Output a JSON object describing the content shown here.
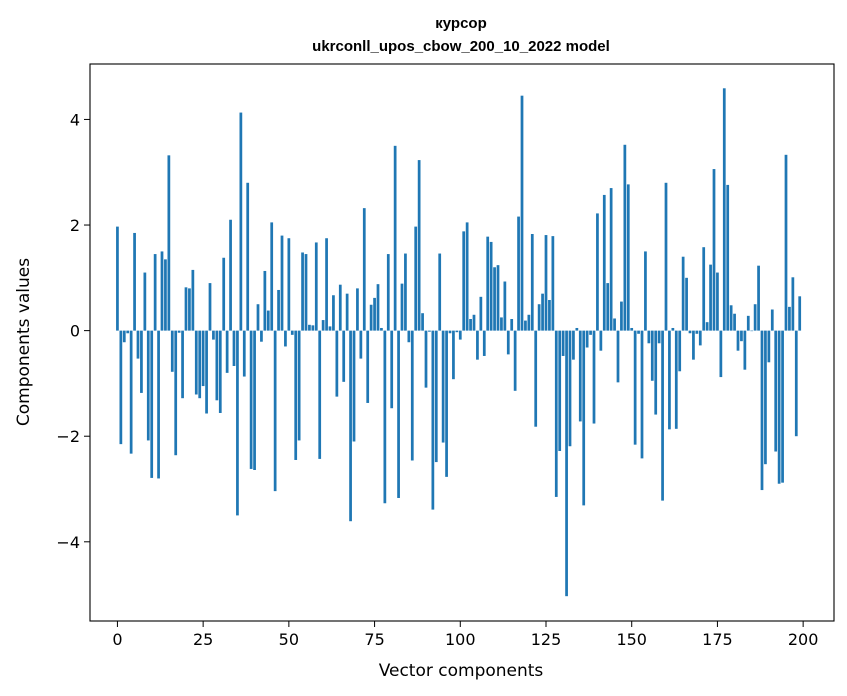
{
  "chart_data": {
    "type": "bar",
    "title": "курсор",
    "subtitle": "ukrconll_upos_cbow_200_10_2022 model",
    "xlabel": "Vector components",
    "ylabel": "Components values",
    "xlim": [
      -8,
      209
    ],
    "ylim": [
      -5.5,
      5.05
    ],
    "xticks": [
      0,
      25,
      50,
      75,
      100,
      125,
      150,
      175,
      200
    ],
    "yticks": [
      -4,
      -2,
      0,
      2,
      4
    ],
    "bar_color": "#1f77b4",
    "grid": false,
    "values": [
      1.97,
      -2.15,
      -0.22,
      -0.05,
      -2.33,
      1.85,
      -0.53,
      -1.18,
      1.1,
      -2.08,
      -2.79,
      1.45,
      -2.8,
      1.5,
      1.35,
      3.32,
      -0.78,
      -2.36,
      -0.04,
      -1.28,
      0.82,
      0.8,
      1.15,
      -1.21,
      -1.28,
      -1.05,
      -1.57,
      0.9,
      -0.17,
      -1.32,
      -1.56,
      1.38,
      -0.8,
      2.1,
      -0.67,
      -3.5,
      4.13,
      -0.87,
      2.8,
      -2.62,
      -2.64,
      0.5,
      -0.21,
      1.13,
      0.38,
      2.05,
      -3.04,
      0.77,
      1.8,
      -0.3,
      1.75,
      -0.08,
      -2.45,
      -2.08,
      1.48,
      1.45,
      0.11,
      0.1,
      1.67,
      -2.43,
      0.2,
      1.75,
      0.08,
      0.67,
      -1.25,
      0.87,
      -0.97,
      0.7,
      -3.61,
      -2.1,
      0.8,
      -0.53,
      2.32,
      -1.37,
      0.49,
      0.62,
      0.88,
      0.05,
      -3.27,
      1.45,
      -1.47,
      3.5,
      -3.17,
      0.89,
      1.46,
      -0.22,
      -2.46,
      1.97,
      3.23,
      0.33,
      -1.08,
      -0.02,
      -3.39,
      -2.49,
      1.46,
      -2.12,
      -2.77,
      -0.05,
      -0.92,
      -0.03,
      -0.17,
      1.88,
      2.05,
      0.22,
      0.3,
      -0.55,
      0.64,
      -0.48,
      1.78,
      1.68,
      1.2,
      1.24,
      0.25,
      0.93,
      -0.45,
      0.22,
      -1.14,
      2.16,
      4.45,
      0.19,
      0.3,
      1.83,
      -1.82,
      0.5,
      0.7,
      1.81,
      0.58,
      1.79,
      -3.15,
      -2.28,
      -0.48,
      -5.03,
      -2.19,
      -0.55,
      0.05,
      -1.72,
      -3.31,
      -0.32,
      -0.08,
      -1.76,
      2.22,
      -0.38,
      2.57,
      0.9,
      2.7,
      0.23,
      -0.98,
      0.55,
      3.52,
      2.77,
      0.05,
      -2.16,
      -0.06,
      -2.42,
      1.5,
      -0.24,
      -0.95,
      -1.59,
      -0.24,
      -3.22,
      2.8,
      -1.87,
      0.05,
      -1.86,
      -0.77,
      1.4,
      1.0,
      -0.05,
      -0.55,
      -0.06,
      -0.28,
      1.58,
      0.16,
      1.25,
      3.06,
      1.1,
      -0.88,
      4.59,
      2.76,
      0.48,
      0.32,
      -0.38,
      -0.2,
      -0.74,
      0.28,
      -0.01,
      0.5,
      1.23,
      -3.02,
      -2.53,
      -0.6,
      0.4,
      -2.29,
      -2.9,
      -2.88,
      3.33,
      0.45,
      1.01,
      -2.0,
      0.65
    ]
  }
}
